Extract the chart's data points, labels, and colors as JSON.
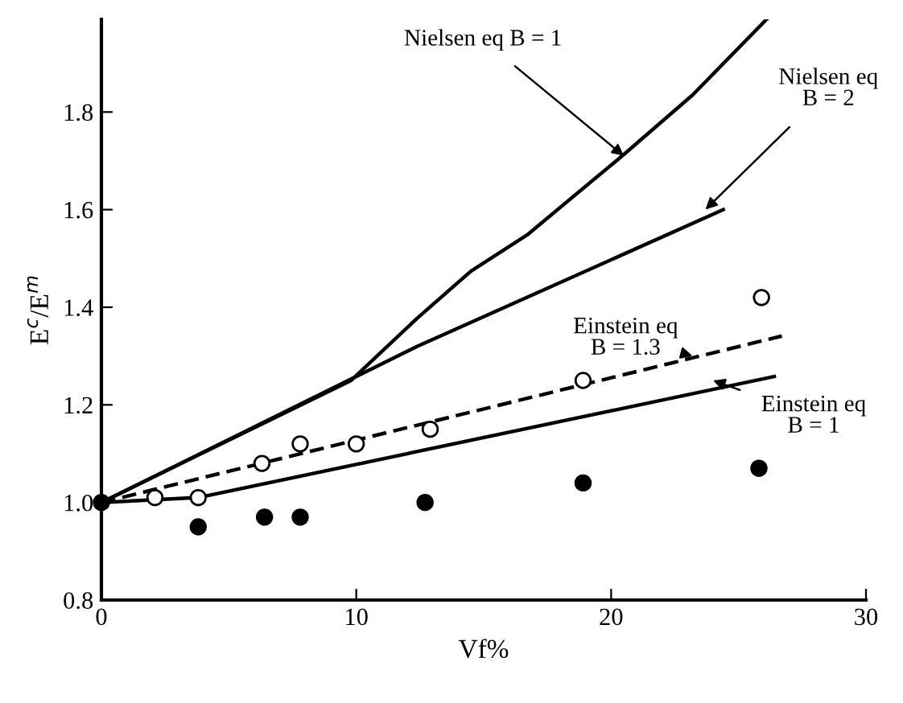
{
  "chart_data": {
    "type": "line",
    "xlabel": "Vf%",
    "ylabel": "E$^{c}$/E$^{m}$",
    "xlim": [
      0,
      30
    ],
    "ylim": [
      0.8,
      1.99
    ],
    "xticks": [
      0,
      10,
      20,
      30
    ],
    "yticks": [
      0.8,
      {
        "value": 1.0,
        "label": "1.0"
      },
      1.2,
      1.4,
      1.6,
      1.8
    ],
    "grid": false,
    "legend": false,
    "series": [
      {
        "type": "line",
        "color": "#000000",
        "line_style": "solid",
        "x": [
          0,
          9.8,
          12.4,
          14.5,
          16.7,
          20.5,
          23.2,
          26.1
        ],
        "values": [
          1.0,
          1.25,
          1.378,
          1.474,
          1.548,
          1.713,
          1.835,
          1.99
        ]
      },
      {
        "type": "line",
        "color": "#000000",
        "line_style": "solid",
        "x": [
          0,
          12.4,
          24.4
        ],
        "values": [
          1.0,
          1.32,
          1.6
        ]
      },
      {
        "type": "line",
        "color": "#000000",
        "line_style": "dashed",
        "x": [
          0,
          26.7
        ],
        "values": [
          1.0,
          1.341
        ]
      },
      {
        "type": "line",
        "color": "#000000",
        "line_style": "solid",
        "x": [
          0,
          3.8,
          26.4
        ],
        "values": [
          1.0,
          1.01,
          1.258
        ]
      },
      {
        "type": "scatter",
        "color": "#ffffff",
        "marker": "circle",
        "x": [
          2.1,
          3.8,
          6.3,
          7.8,
          10.0,
          12.9,
          18.9,
          25.9
        ],
        "values": [
          1.01,
          1.01,
          1.08,
          1.12,
          1.12,
          1.15,
          1.25,
          1.42
        ]
      },
      {
        "type": "scatter",
        "color": "#000000",
        "marker": "circle",
        "x": [
          0,
          3.8,
          6.4,
          7.8,
          12.7,
          18.9,
          25.8
        ],
        "values": [
          1.0,
          0.95,
          0.97,
          0.97,
          1.0,
          1.04,
          1.07
        ]
      }
    ],
    "annotations": [
      {
        "text": "Nielsen eq B = 1",
        "x": 20.5,
        "y": 1.71
      },
      {
        "text": "Nielsen eq\nB = 2",
        "x": 23.7,
        "y": 1.6
      },
      {
        "text": "Einstein eq\nB = 1.3",
        "x": 23.2,
        "y": 1.3
      },
      {
        "text": "Einstein eq\nB = 1",
        "x": 24.0,
        "y": 1.25
      }
    ]
  }
}
